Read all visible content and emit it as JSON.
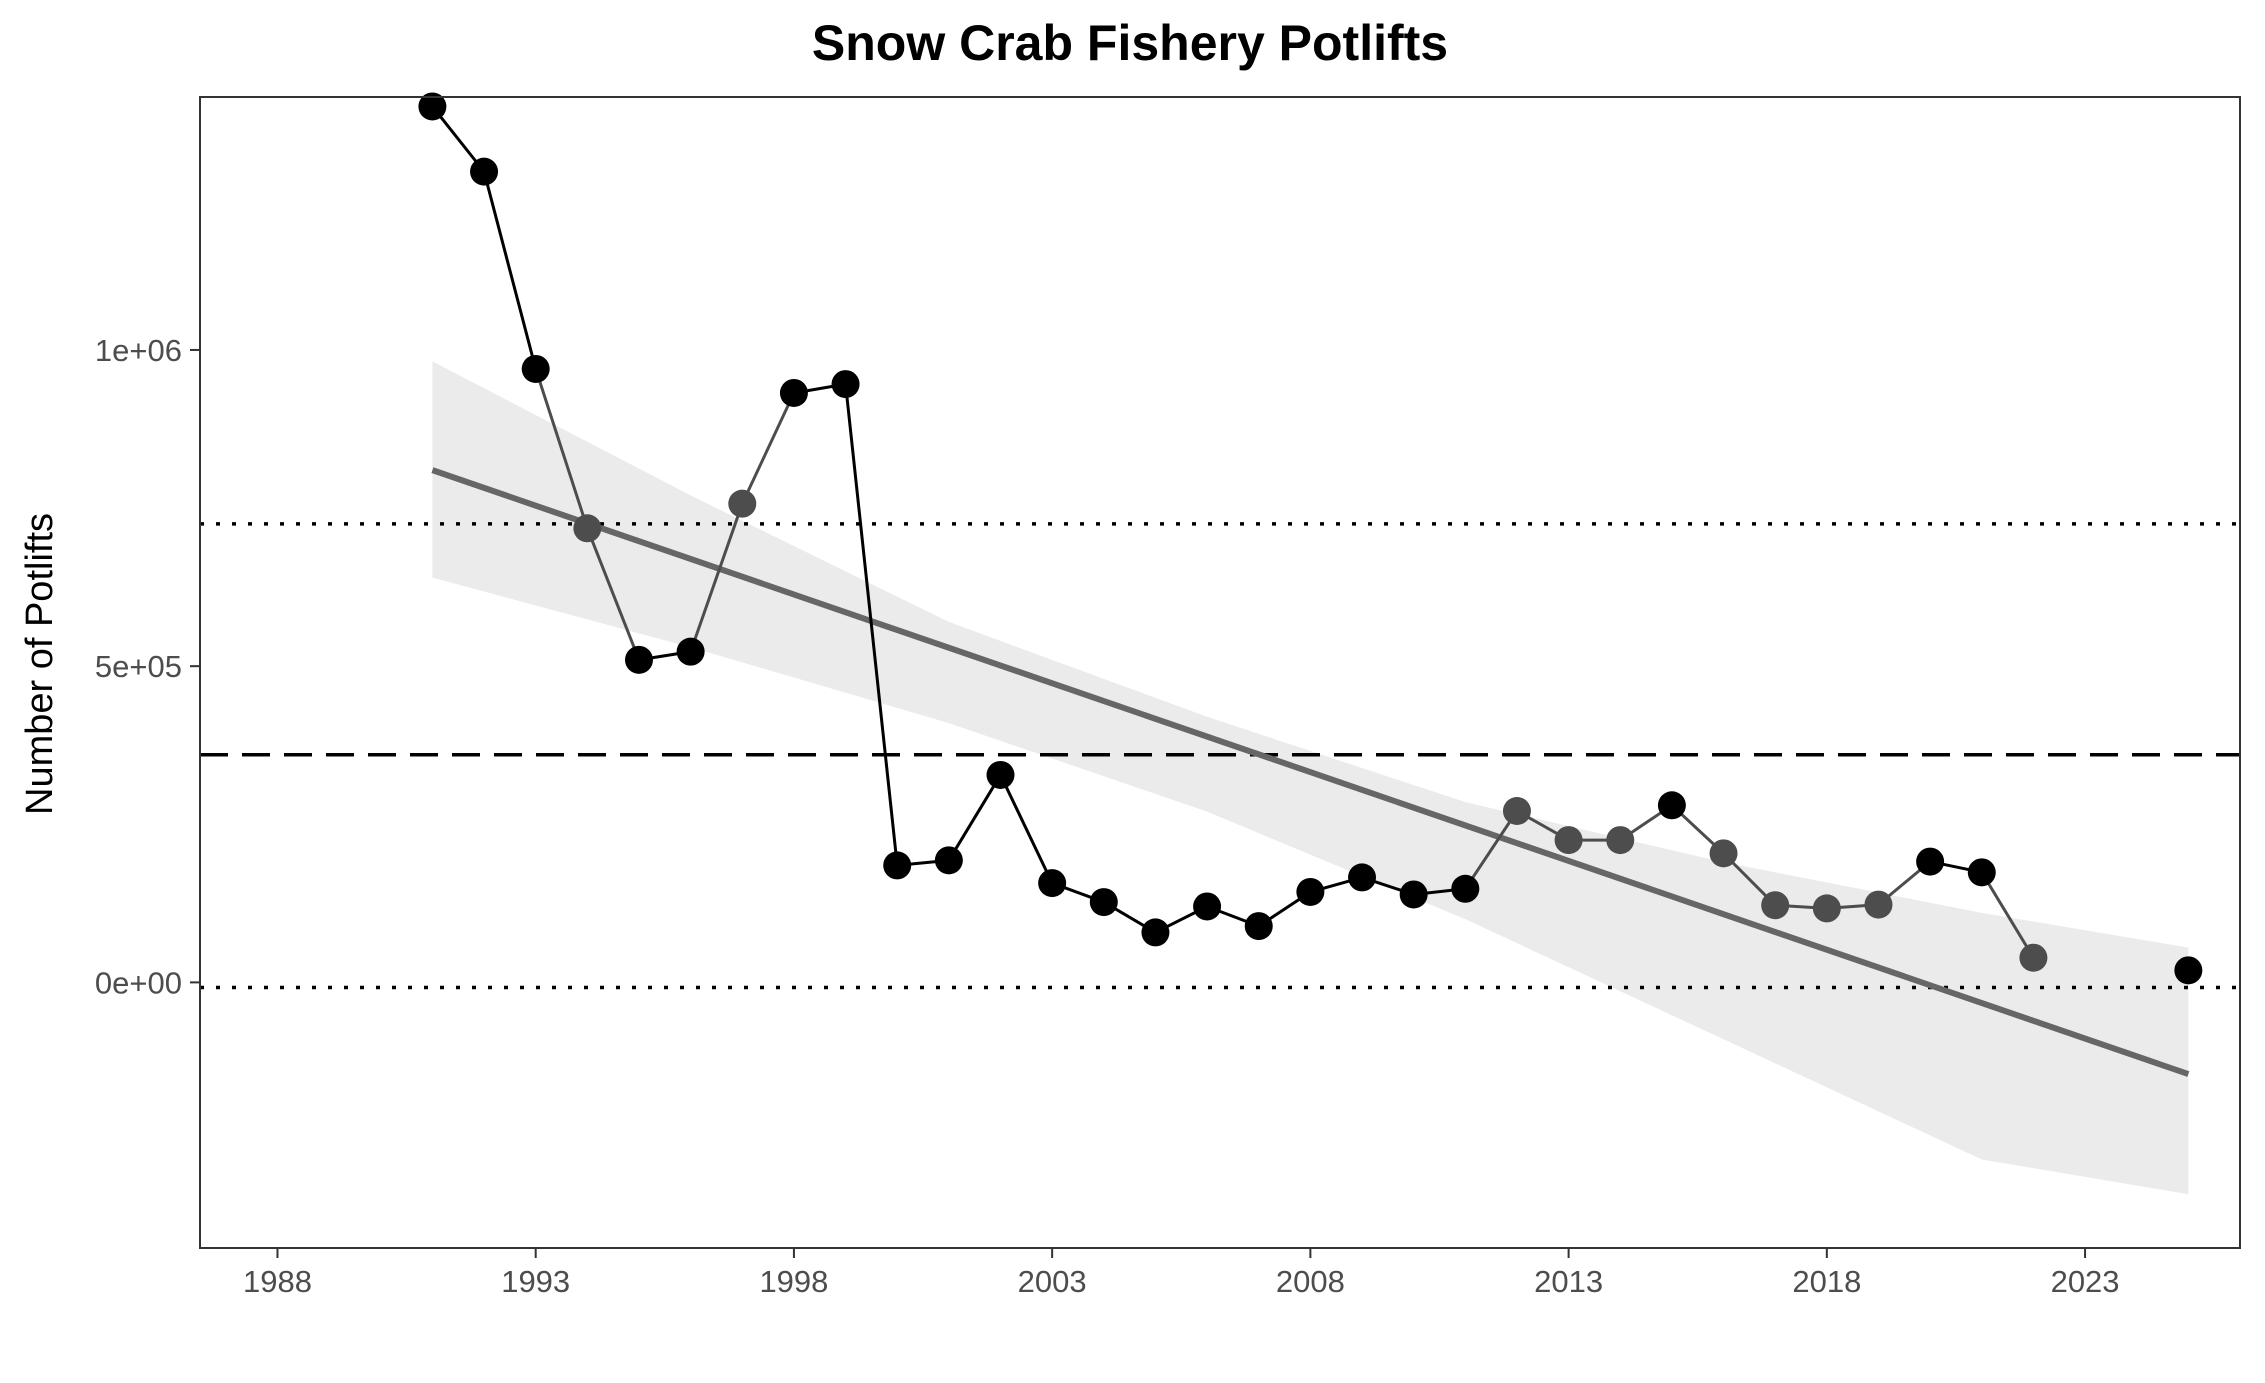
{
  "chart_data": {
    "type": "line",
    "title": "Snow Crab Fishery Potlifts",
    "xlabel": "",
    "ylabel": "Number of Potlifts",
    "xlim": [
      1986.5,
      2026
    ],
    "ylim": [
      -420000,
      1400000
    ],
    "x_ticks": [
      1988,
      1993,
      1998,
      2003,
      2008,
      2013,
      2018,
      2023
    ],
    "y_ticks": [
      0,
      500000,
      1000000
    ],
    "y_tick_labels": [
      "0e+00",
      "5e+05",
      "1e+06"
    ],
    "grid": false,
    "legend": "none",
    "series": [
      {
        "x": [
          1991,
          1992,
          1993,
          1994,
          1995,
          1996,
          1997,
          1998,
          1999,
          2000,
          2001,
          2002,
          2003,
          2004,
          2005,
          2006,
          2007,
          2008,
          2009,
          2010,
          2011,
          2012,
          2013,
          2014,
          2015,
          2016,
          2017,
          2018,
          2019,
          2020,
          2021,
          2022,
          2025
        ],
        "y": [
          1385000,
          1282000,
          970000,
          718000,
          510000,
          523000,
          757000,
          932000,
          946000,
          185000,
          193000,
          328000,
          157000,
          127000,
          79000,
          120000,
          89000,
          143000,
          166000,
          139000,
          148000,
          271000,
          225000,
          225000,
          280000,
          204000,
          122000,
          117000,
          123000,
          191000,
          174000,
          39000,
          19000
        ],
        "point_colors": [
          "#000000",
          "#000000",
          "#000000",
          "#4d4d4d",
          "#000000",
          "#000000",
          "#4d4d4d",
          "#000000",
          "#000000",
          "#000000",
          "#000000",
          "#000000",
          "#000000",
          "#000000",
          "#000000",
          "#000000",
          "#000000",
          "#000000",
          "#000000",
          "#000000",
          "#000000",
          "#4d4d4d",
          "#4d4d4d",
          "#4d4d4d",
          "#000000",
          "#4d4d4d",
          "#4d4d4d",
          "#4d4d4d",
          "#4d4d4d",
          "#000000",
          "#000000",
          "#4d4d4d",
          "#000000"
        ]
      }
    ],
    "trend_line": {
      "x": [
        1991,
        2025
      ],
      "y": [
        810000,
        -145000
      ],
      "color": "#666666"
    },
    "confidence_band": {
      "x": [
        1991,
        1996,
        2001,
        2006,
        2011,
        2016,
        2021,
        2025
      ],
      "upper": [
        982000,
        770000,
        570000,
        420000,
        285000,
        190000,
        110000,
        55000
      ],
      "lower": [
        640000,
        530000,
        410000,
        270000,
        100000,
        -90000,
        -280000,
        -335000
      ],
      "color": "#ebebeb"
    },
    "reference_lines": [
      {
        "y": 725000,
        "style": "dotted",
        "color": "#000000"
      },
      {
        "y": 360000,
        "style": "dashed",
        "color": "#000000"
      },
      {
        "y": -8000,
        "style": "dotted",
        "color": "#000000"
      }
    ]
  }
}
